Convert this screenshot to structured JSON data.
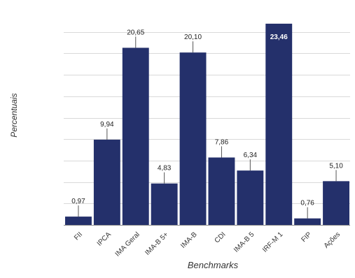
{
  "chart_data": {
    "type": "bar",
    "categories": [
      "FII",
      "IPCA",
      "IMA Geral",
      "IMA-B 5+",
      "IMA-B",
      "CDI",
      "IMA-B 5",
      "IRF-M 1",
      "FIP",
      "Ações"
    ],
    "values": [
      0.97,
      9.94,
      20.65,
      4.83,
      20.1,
      7.86,
      6.34,
      23.46,
      0.76,
      5.1
    ],
    "data_labels": [
      "0,97",
      "9,94",
      "20,65",
      "4,83",
      "20,10",
      "7,86",
      "6,34",
      "23,46",
      "0,76",
      "5,10"
    ],
    "title": "",
    "xlabel": "Benchmarks",
    "ylabel": "Percentuais",
    "ylim": [
      0,
      24
    ],
    "grid": true,
    "legend": "none",
    "colors": {
      "bar": "#24306b",
      "grid": "#d9d9d9",
      "axis": "#8c8c8c",
      "label_line": "#555555"
    }
  }
}
